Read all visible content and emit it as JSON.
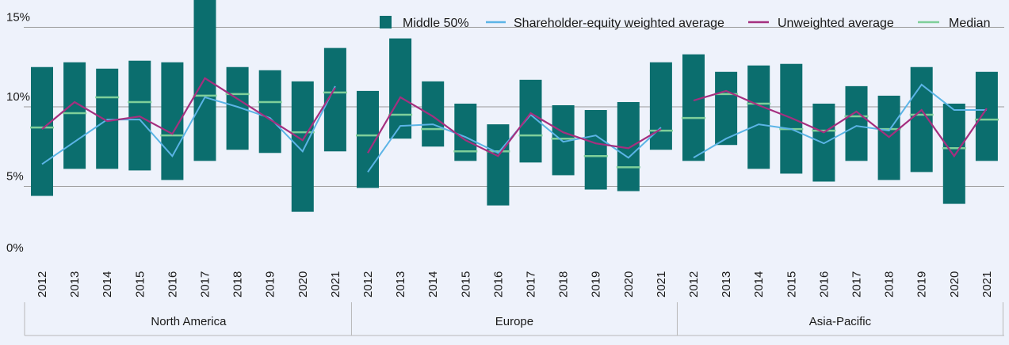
{
  "chart_data": {
    "type": "bar",
    "title": "",
    "xlabel": "",
    "ylabel": "",
    "ylim": [
      0,
      16.5
    ],
    "y_ticks": [
      {
        "value": 0,
        "label": "0%"
      },
      {
        "value": 5,
        "label": "5%"
      },
      {
        "value": 10,
        "label": "10%"
      },
      {
        "value": 15,
        "label": "15%"
      }
    ],
    "grid": true,
    "legend_position": "top-right",
    "colors": {
      "middle": "#0b6e6e",
      "weighted": "#5bb4e6",
      "unweighted": "#a52f7f",
      "median": "#7fcf9a",
      "grid": "#9b9b9b"
    },
    "legend": [
      {
        "key": "middle",
        "label": "Middle 50%"
      },
      {
        "key": "weighted",
        "label": "Shareholder-equity weighted average"
      },
      {
        "key": "unweighted",
        "label": "Unweighted average"
      },
      {
        "key": "median",
        "label": "Median"
      }
    ],
    "groups": [
      {
        "name": "North America",
        "categories": [
          "2012",
          "2013",
          "2014",
          "2015",
          "2016",
          "2017",
          "2018",
          "2019",
          "2020",
          "2021"
        ],
        "middle_low": [
          4.4,
          6.1,
          6.1,
          6.0,
          5.4,
          6.6,
          7.3,
          7.1,
          3.4,
          7.2
        ],
        "middle_high": [
          12.5,
          12.8,
          12.4,
          12.9,
          12.8,
          16.8,
          12.5,
          12.3,
          11.6,
          13.7
        ],
        "median": [
          8.7,
          9.6,
          10.6,
          10.3,
          8.2,
          10.7,
          10.8,
          10.3,
          8.4,
          10.9
        ],
        "weighted": [
          6.4,
          7.8,
          9.2,
          9.2,
          6.9,
          10.6,
          10.0,
          9.3,
          7.2,
          11.3
        ],
        "unweighted": [
          8.6,
          10.3,
          9.1,
          9.4,
          8.3,
          11.8,
          10.5,
          9.2,
          7.9,
          11.2
        ]
      },
      {
        "name": "Europe",
        "categories": [
          "2012",
          "2013",
          "2014",
          "2015",
          "2016",
          "2017",
          "2018",
          "2019",
          "2020",
          "2021"
        ],
        "middle_low": [
          4.9,
          8.0,
          7.5,
          6.6,
          3.8,
          6.5,
          5.7,
          4.8,
          4.7,
          7.3
        ],
        "middle_high": [
          11.0,
          14.3,
          11.6,
          10.2,
          8.9,
          11.7,
          10.1,
          9.8,
          10.3,
          12.8
        ],
        "median": [
          8.2,
          9.5,
          8.6,
          7.2,
          7.2,
          8.2,
          8.0,
          6.9,
          6.2,
          8.5
        ],
        "weighted": [
          5.9,
          8.8,
          8.9,
          8.1,
          7.1,
          9.5,
          7.8,
          8.2,
          6.8,
          8.7
        ],
        "unweighted": [
          7.1,
          10.6,
          9.4,
          7.9,
          6.9,
          9.6,
          8.4,
          7.7,
          7.4,
          8.6
        ]
      },
      {
        "name": "Asia-Pacific",
        "categories": [
          "2012",
          "2013",
          "2014",
          "2015",
          "2016",
          "2017",
          "2018",
          "2019",
          "2020",
          "2021"
        ],
        "middle_low": [
          6.6,
          7.6,
          6.1,
          5.8,
          5.3,
          6.6,
          5.4,
          5.9,
          3.9,
          6.6
        ],
        "middle_high": [
          13.3,
          12.2,
          12.6,
          12.7,
          10.2,
          11.3,
          10.7,
          12.5,
          10.2,
          12.2
        ],
        "median": [
          9.3,
          10.8,
          10.2,
          8.6,
          8.5,
          9.4,
          8.6,
          9.5,
          7.4,
          9.2
        ],
        "weighted": [
          6.8,
          8.0,
          8.9,
          8.6,
          7.7,
          8.8,
          8.5,
          11.4,
          9.8,
          9.8
        ],
        "unweighted": [
          10.4,
          11.0,
          10.1,
          9.3,
          8.4,
          9.7,
          8.1,
          9.8,
          6.9,
          9.9
        ]
      }
    ]
  }
}
